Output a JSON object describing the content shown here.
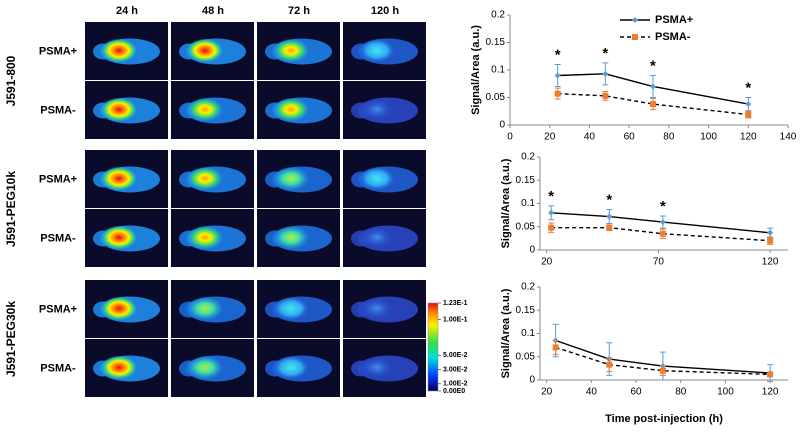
{
  "image_panel": {
    "timepoints": [
      "24 h",
      "48 h",
      "72 h",
      "120 h"
    ],
    "groups": [
      "J591-800",
      "J591-PEG10k",
      "J591-PEG30k"
    ],
    "rows": [
      "PSMA+",
      "PSMA-"
    ],
    "colorbar": {
      "range": [
        0,
        0.123
      ],
      "ticks": [
        {
          "value": 0.123,
          "label": "1.23E-1"
        },
        {
          "value": 0.1,
          "label": "1.00E-1"
        },
        {
          "value": 0.05,
          "label": "5.00E-2"
        },
        {
          "value": 0.03,
          "label": "3.00E-2"
        },
        {
          "value": 0.01,
          "label": "1.00E-2"
        },
        {
          "value": 0,
          "label": "0.00E0"
        }
      ]
    }
  },
  "chart_data": [
    {
      "type": "line",
      "ylabel": "Signal/Area (a.u.)",
      "legend": true,
      "xlim": [
        0,
        140
      ],
      "xticks": [
        0,
        20,
        40,
        60,
        80,
        100,
        120,
        140
      ],
      "ylim": [
        0,
        0.2
      ],
      "yticks": [
        0,
        0.05,
        0.1,
        0.15,
        0.2
      ],
      "series": [
        {
          "name": "PSMA+",
          "color": "#5b9bd5",
          "marker": "diamond",
          "dashed": false,
          "x": [
            24,
            48,
            72,
            120
          ],
          "values": [
            0.09,
            0.093,
            0.07,
            0.038
          ],
          "errors": [
            0.02,
            0.02,
            0.02,
            0.012
          ]
        },
        {
          "name": "PSMA-",
          "color": "#ed7d31",
          "marker": "square",
          "dashed": true,
          "x": [
            24,
            48,
            72,
            120
          ],
          "values": [
            0.057,
            0.053,
            0.038,
            0.019
          ],
          "errors": [
            0.01,
            0.008,
            0.01,
            0.006
          ]
        }
      ],
      "annotations": [
        {
          "text": "*",
          "x": 24
        },
        {
          "text": "*",
          "x": 48
        },
        {
          "text": "*",
          "x": 72
        },
        {
          "text": "*",
          "x": 120
        }
      ]
    },
    {
      "type": "line",
      "ylabel": "Signal/Area (a.u.)",
      "legend": false,
      "xlim": [
        17,
        128
      ],
      "xticks": [
        20,
        70,
        120
      ],
      "ylim": [
        0,
        0.2
      ],
      "yticks": [
        0,
        0.05,
        0.1,
        0.15,
        0.2
      ],
      "series": [
        {
          "color": "#5b9bd5",
          "marker": "diamond",
          "dashed": false,
          "x": [
            22,
            48,
            72,
            120
          ],
          "values": [
            0.08,
            0.072,
            0.06,
            0.037
          ],
          "errors": [
            0.015,
            0.015,
            0.013,
            0.01
          ]
        },
        {
          "color": "#ed7d31",
          "marker": "square",
          "dashed": true,
          "x": [
            22,
            48,
            72,
            120
          ],
          "values": [
            0.048,
            0.048,
            0.035,
            0.02
          ],
          "errors": [
            0.01,
            0.006,
            0.01,
            0.008
          ]
        }
      ],
      "annotations": [
        {
          "text": "*",
          "x": 22
        },
        {
          "text": "*",
          "x": 48
        },
        {
          "text": "*",
          "x": 72
        }
      ]
    },
    {
      "type": "line",
      "ylabel": "Signal/Area (a.u.)",
      "xlabel": "Time post-injection (h)",
      "legend": false,
      "xlim": [
        17,
        128
      ],
      "xticks": [
        20,
        40,
        60,
        80,
        100,
        120
      ],
      "ylim": [
        0,
        0.2
      ],
      "yticks": [
        0,
        0.05,
        0.1,
        0.15,
        0.2
      ],
      "series": [
        {
          "color": "#5b9bd5",
          "marker": "diamond",
          "dashed": false,
          "x": [
            24,
            48,
            72,
            120
          ],
          "values": [
            0.085,
            0.045,
            0.03,
            0.015
          ],
          "errors": [
            0.035,
            0.035,
            0.03,
            0.018
          ]
        },
        {
          "color": "#ed7d31",
          "marker": "square",
          "dashed": true,
          "x": [
            24,
            48,
            72,
            120
          ],
          "values": [
            0.07,
            0.033,
            0.02,
            0.012
          ],
          "errors": [
            0.015,
            0.015,
            0.01,
            0.005
          ]
        }
      ],
      "annotations": []
    }
  ]
}
